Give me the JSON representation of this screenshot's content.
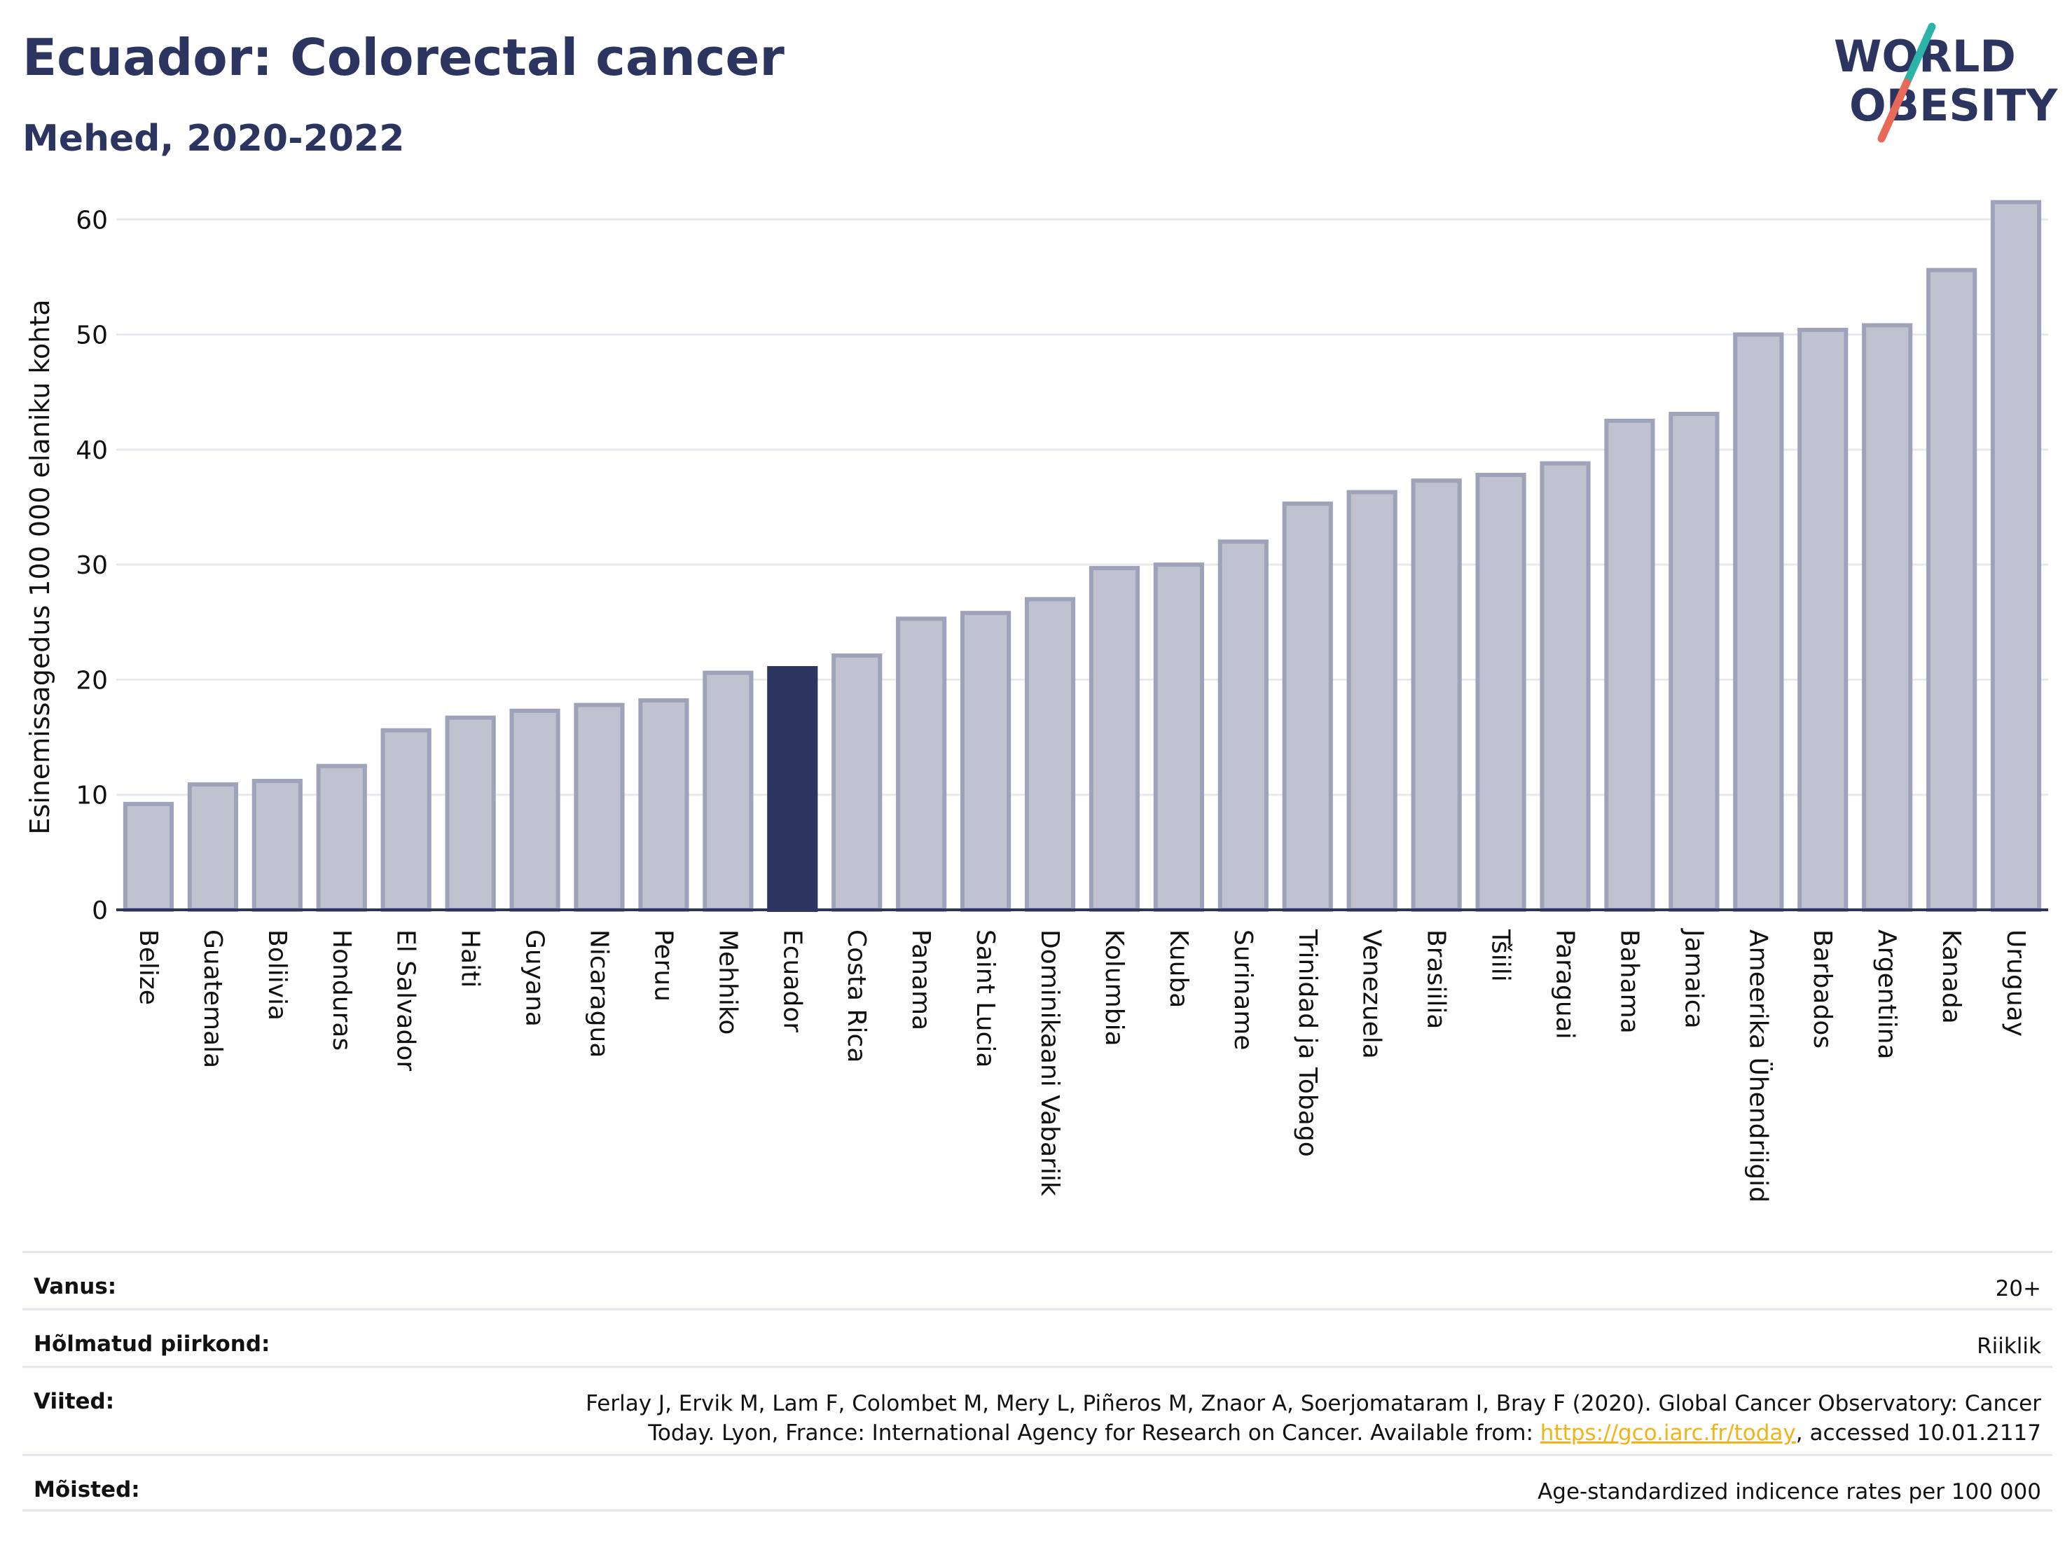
{
  "header": {
    "title": "Ecuador: Colorectal cancer",
    "subtitle": "Mehed, 2020-2022"
  },
  "logo": {
    "line1": "WORLD",
    "line2": "OBESITY",
    "colors": {
      "text": "#2c3560",
      "slash_teal": "#2bb5a8",
      "slash_coral": "#e8685a"
    }
  },
  "chart_data": {
    "type": "bar",
    "title": "Ecuador: Colorectal cancer",
    "subtitle": "Mehed, 2020-2022",
    "xlabel": "",
    "ylabel": "Esinemissagedus 100 000 elaniku kohta",
    "ylim": [
      0,
      63
    ],
    "yticks": [
      0,
      10,
      20,
      30,
      40,
      50,
      60
    ],
    "grid": true,
    "highlight": "Ecuador",
    "colors": {
      "bar": "#bfc2cf",
      "bar_edge": "#9ea3b9",
      "highlight": "#2c3560",
      "grid": "#e8e9ee",
      "axis": "#2c3560"
    },
    "categories": [
      "Belize",
      "Guatemala",
      "Boliivia",
      "Honduras",
      "El Salvador",
      "Haiti",
      "Guyana",
      "Nicaragua",
      "Peruu",
      "Mehhiko",
      "Ecuador",
      "Costa Rica",
      "Panama",
      "Saint Lucia",
      "Dominikaani Vabariik",
      "Kolumbia",
      "Kuuba",
      "Suriname",
      "Trinidad ja Tobago",
      "Venezuela",
      "Brasiilia",
      "Tšiili",
      "Paraguai",
      "Bahama",
      "Jamaica",
      "Ameerika Ühendriigid",
      "Barbados",
      "Argentiina",
      "Kanada",
      "Uruguay"
    ],
    "values": [
      9.2,
      10.9,
      11.2,
      12.5,
      15.6,
      16.7,
      17.3,
      17.8,
      18.2,
      20.6,
      21.0,
      22.1,
      25.3,
      25.8,
      27.0,
      29.7,
      30.0,
      32.0,
      35.3,
      36.3,
      37.3,
      37.8,
      38.8,
      42.5,
      43.1,
      50.0,
      50.4,
      50.8,
      55.6,
      61.5
    ]
  },
  "meta": {
    "rows": [
      {
        "label": "Vanus:",
        "value": "20+"
      },
      {
        "label": "Hõlmatud piirkond:",
        "value": "Riiklik"
      },
      {
        "label": "Viited:",
        "value_line1": "Ferlay J, Ervik M, Lam F, Colombet M, Mery L, Piñeros M, Znaor A, Soerjomataram I, Bray F (2020). Global Cancer Observatory: Cancer",
        "value_line2_pre": "Today. Lyon, France: International Agency for Research on Cancer. Available from: ",
        "link": "https://gco.iarc.fr/today",
        "value_line2_post": ", accessed 10.01.2117"
      },
      {
        "label": "Mõisted:",
        "value": "Age-standardized indicence rates per 100 000"
      }
    ]
  }
}
